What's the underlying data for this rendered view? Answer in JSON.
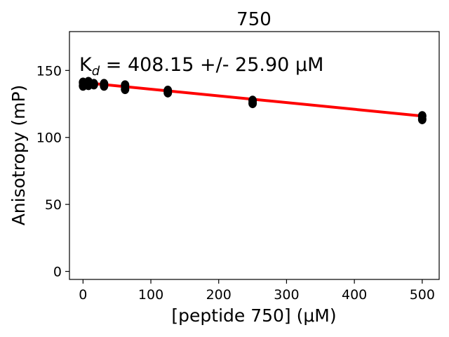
{
  "chart_data": {
    "type": "scatter",
    "title": "750",
    "xlabel": "[peptide 750] (μM)",
    "ylabel": "Anisotropy (mP)",
    "xlim": [
      -20,
      525
    ],
    "ylim": [
      -6,
      179
    ],
    "xticks": [
      0,
      100,
      200,
      300,
      400,
      500
    ],
    "yticks": [
      0,
      50,
      100,
      150
    ],
    "grid": false,
    "annotation": {
      "prefix": "K",
      "subscript": "d",
      "text": " = 408.15 +/- 25.90 μM"
    },
    "points": [
      {
        "x": 0,
        "y": 141
      },
      {
        "x": 0,
        "y": 138.5
      },
      {
        "x": 2,
        "y": 140.5
      },
      {
        "x": 4,
        "y": 139.5
      },
      {
        "x": 8,
        "y": 141.5
      },
      {
        "x": 8,
        "y": 139
      },
      {
        "x": 16,
        "y": 140
      },
      {
        "x": 16,
        "y": 139.5
      },
      {
        "x": 31,
        "y": 140
      },
      {
        "x": 31,
        "y": 138.5
      },
      {
        "x": 62,
        "y": 139
      },
      {
        "x": 62,
        "y": 136
      },
      {
        "x": 125,
        "y": 135
      },
      {
        "x": 125,
        "y": 133.5
      },
      {
        "x": 250,
        "y": 127.5
      },
      {
        "x": 250,
        "y": 125.5
      },
      {
        "x": 500,
        "y": 116
      },
      {
        "x": 500,
        "y": 113.5
      }
    ],
    "fit": {
      "color": "#ff0000",
      "x": [
        0,
        500
      ],
      "y": [
        141,
        116
      ]
    },
    "marker_color": "#000000"
  }
}
